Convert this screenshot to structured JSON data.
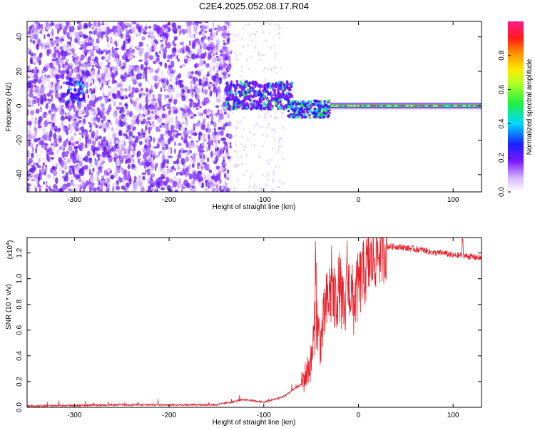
{
  "title": "C2E4.2025.052.08.17.R04",
  "colors": {
    "snr_line": "#e8202a",
    "axis": "#000000",
    "cool_purple": "#7a1aff",
    "signal_green": "#2ee84a",
    "signal_red": "#e82020"
  },
  "chart_data": [
    {
      "type": "heatmap",
      "title": "",
      "xlabel": "Height of straight line (km)",
      "ylabel": "Frequency (Hz)",
      "xlim": [
        -350,
        130
      ],
      "ylim": [
        -50,
        49
      ],
      "x_ticks": [
        -300,
        -200,
        -100,
        0,
        100
      ],
      "y_ticks": [
        -40,
        -20,
        0,
        20,
        40
      ],
      "grid": false,
      "colorbar": {
        "label": "Normalized spectral amplitude",
        "range": [
          0.0,
          1.0
        ],
        "ticks": [
          "0.0",
          "0.2",
          "0.4",
          "0.6",
          "0.8"
        ],
        "tick_values": [
          0.0,
          0.2,
          0.4,
          0.6,
          0.8
        ],
        "colormap": "rainbow (magenta-violet-blue-cyan-green-yellow-orange-red-pink)"
      },
      "regions": [
        {
          "x": [
            -350,
            -135
          ],
          "y": [
            -50,
            49
          ],
          "amplitude": 0.12,
          "description": "broadband speckle noise"
        },
        {
          "x": [
            -135,
            -90
          ],
          "y": [
            -50,
            49
          ],
          "amplitude": 0.05,
          "description": "sparse faint noise"
        },
        {
          "x": [
            -305,
            -295
          ],
          "y": [
            6,
            14
          ],
          "amplitude": 0.25
        },
        {
          "x": [
            -140,
            -70
          ],
          "y": [
            -2,
            14
          ],
          "amplitude": 0.45
        },
        {
          "x": [
            -70,
            -30
          ],
          "y": [
            -6,
            2
          ],
          "amplitude": 0.55
        },
        {
          "x": [
            -30,
            130
          ],
          "y": [
            -1,
            1
          ],
          "amplitude": 0.75
        }
      ]
    },
    {
      "type": "line",
      "title": "",
      "xlabel": "Height of straight line (km)",
      "ylabel": "SNR (10 * v/v)",
      "y_multiplier": "(x10",
      "y_multiplier_exp": "4",
      "y_multiplier_close": ")",
      "xlim": [
        -350,
        130
      ],
      "ylim": [
        0.0,
        1.32
      ],
      "x_ticks": [
        -300,
        -200,
        -100,
        0,
        100
      ],
      "y_ticks": [
        "0.0",
        "0.2",
        "0.4",
        "0.6",
        "0.8",
        "1.0",
        "1.2"
      ],
      "y_tick_values": [
        0.0,
        0.2,
        0.4,
        0.6,
        0.8,
        1.0,
        1.2
      ],
      "grid": false,
      "series": [
        {
          "x": [
            -350,
            -300,
            -250,
            -200,
            -150,
            -120,
            -100,
            -80,
            -60,
            -50,
            -45,
            -40,
            -35,
            -30,
            -25,
            -20,
            -15,
            -10,
            -5,
            0,
            10,
            20,
            30,
            40,
            50,
            60,
            70,
            80,
            90,
            100,
            110,
            120,
            130
          ],
          "y": [
            0.01,
            0.015,
            0.02,
            0.02,
            0.02,
            0.06,
            0.04,
            0.08,
            0.18,
            0.35,
            0.7,
            0.5,
            0.75,
            0.9,
            0.8,
            0.95,
            0.7,
            0.95,
            0.8,
            0.95,
            1.1,
            1.2,
            1.25,
            1.25,
            1.24,
            1.23,
            1.22,
            1.2,
            1.2,
            1.18,
            1.18,
            1.17,
            1.16
          ],
          "spikes": [
            {
              "x": -45,
              "y": 1.18
            },
            {
              "x": -28,
              "y": 1.1
            },
            {
              "x": -12,
              "y": 1.22
            },
            {
              "x": 110,
              "y": 1.3
            }
          ]
        }
      ]
    }
  ]
}
